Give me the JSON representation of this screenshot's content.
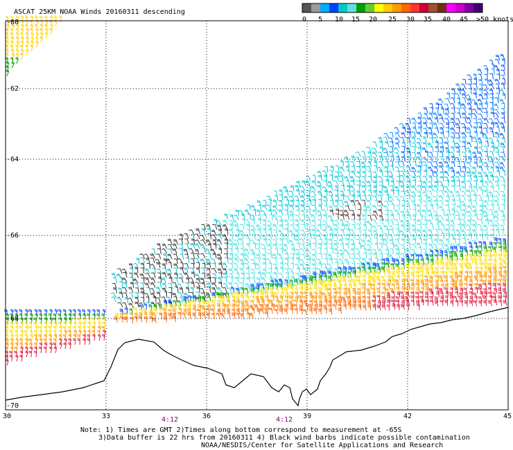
{
  "title": "ASCAT 25KM NOAA Winds 20160311 descending",
  "colorbar": {
    "segments": [
      "#555555",
      "#9a9a9a",
      "#00aaff",
      "#0040ff",
      "#00c8c8",
      "#66dddd",
      "#00a000",
      "#66cc33",
      "#ffff00",
      "#ffcc00",
      "#ff9900",
      "#ff6600",
      "#ff3333",
      "#cc0033",
      "#a05030",
      "#703010",
      "#ff00ff",
      "#cc00cc",
      "#8000a0",
      "#400070"
    ],
    "labels": [
      "0",
      "5",
      "10",
      "15",
      "20",
      "25",
      "30",
      "35",
      "40",
      "45",
      ">50 knots"
    ]
  },
  "lat_labels": [
    "-60",
    "-62",
    "-64",
    "-66",
    "-68",
    "-70"
  ],
  "lon_labels": [
    "30",
    "33",
    "36",
    "39",
    "42",
    "45"
  ],
  "time_labels": [
    "4:12",
    "4:12"
  ],
  "notes": {
    "line1": "Note: 1) Times are GMT 2)Times along bottom correspond to measurement at -65S",
    "line2": "3)Data buffer is 22 hrs from 20160311 4) Black wind barbs indicate possible contamination",
    "line3": "NOAA/NESDIS/Center for Satellite Applications and Research"
  },
  "wind_swaths": [
    {
      "name": "main-swath",
      "color_band": "cyan-blue",
      "speed_kt": "10-15"
    },
    {
      "name": "ice-edge-band",
      "color_band": "yellow-orange-red",
      "speed_kt": "20-40"
    },
    {
      "name": "northwest-swath",
      "color_band": "yellow-green",
      "speed_kt": "15-25"
    },
    {
      "name": "southwest-swath",
      "color_band": "yellow-orange-red",
      "speed_kt": "15-35"
    }
  ]
}
